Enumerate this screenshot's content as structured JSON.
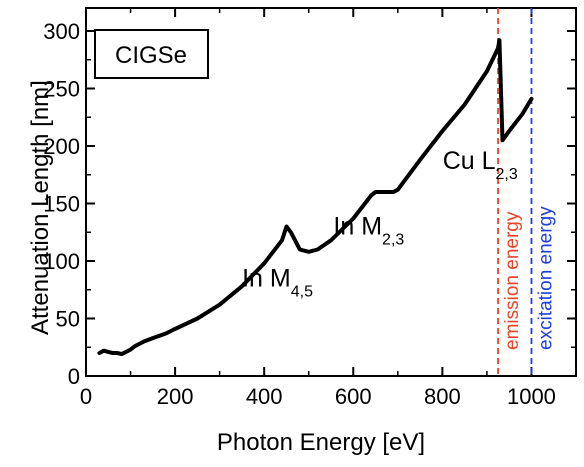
{
  "chart_data": {
    "type": "line",
    "title": "",
    "xlabel": "Photon Energy [eV]",
    "ylabel": "Attenuation Length [nm]",
    "xlim": [
      0,
      1100
    ],
    "ylim": [
      0,
      320
    ],
    "xticks": [
      0,
      200,
      400,
      600,
      800,
      1000
    ],
    "yticks": [
      0,
      50,
      100,
      150,
      200,
      250,
      300
    ],
    "ytick_labels": [
      "0",
      "50",
      "100",
      "150",
      "200",
      "250",
      "300"
    ],
    "grid": false,
    "legend_box": "CIGSe",
    "series": [
      {
        "color": "#000000",
        "x": [
          30,
          40,
          50,
          60,
          70,
          80,
          90,
          100,
          110,
          130,
          150,
          180,
          200,
          250,
          300,
          350,
          400,
          440,
          450,
          460,
          480,
          500,
          520,
          550,
          600,
          640,
          650,
          660,
          690,
          700,
          750,
          800,
          850,
          900,
          925,
          928,
          935,
          950,
          980,
          1000
        ],
        "y": [
          20,
          22,
          21,
          20,
          20,
          19,
          21,
          23,
          26,
          30,
          33,
          37,
          41,
          50,
          62,
          78,
          98,
          118,
          130,
          125,
          110,
          108,
          110,
          118,
          137,
          157,
          160,
          160,
          160,
          162,
          188,
          213,
          236,
          265,
          285,
          292,
          205,
          213,
          228,
          241
        ]
      }
    ],
    "vertical_lines": [
      {
        "x": 925,
        "color": "#e8462a",
        "label": "emission energy"
      },
      {
        "x": 1000,
        "color": "#1f3fd8",
        "label": "excitation energy"
      }
    ],
    "annotations": [
      {
        "main": "In M",
        "sub": "4,5",
        "x": 430,
        "y": 78
      },
      {
        "main": "In M",
        "sub": "2,3",
        "x": 635,
        "y": 123
      },
      {
        "main": "Cu L",
        "sub": "2,3",
        "x": 885,
        "y": 180
      }
    ]
  }
}
